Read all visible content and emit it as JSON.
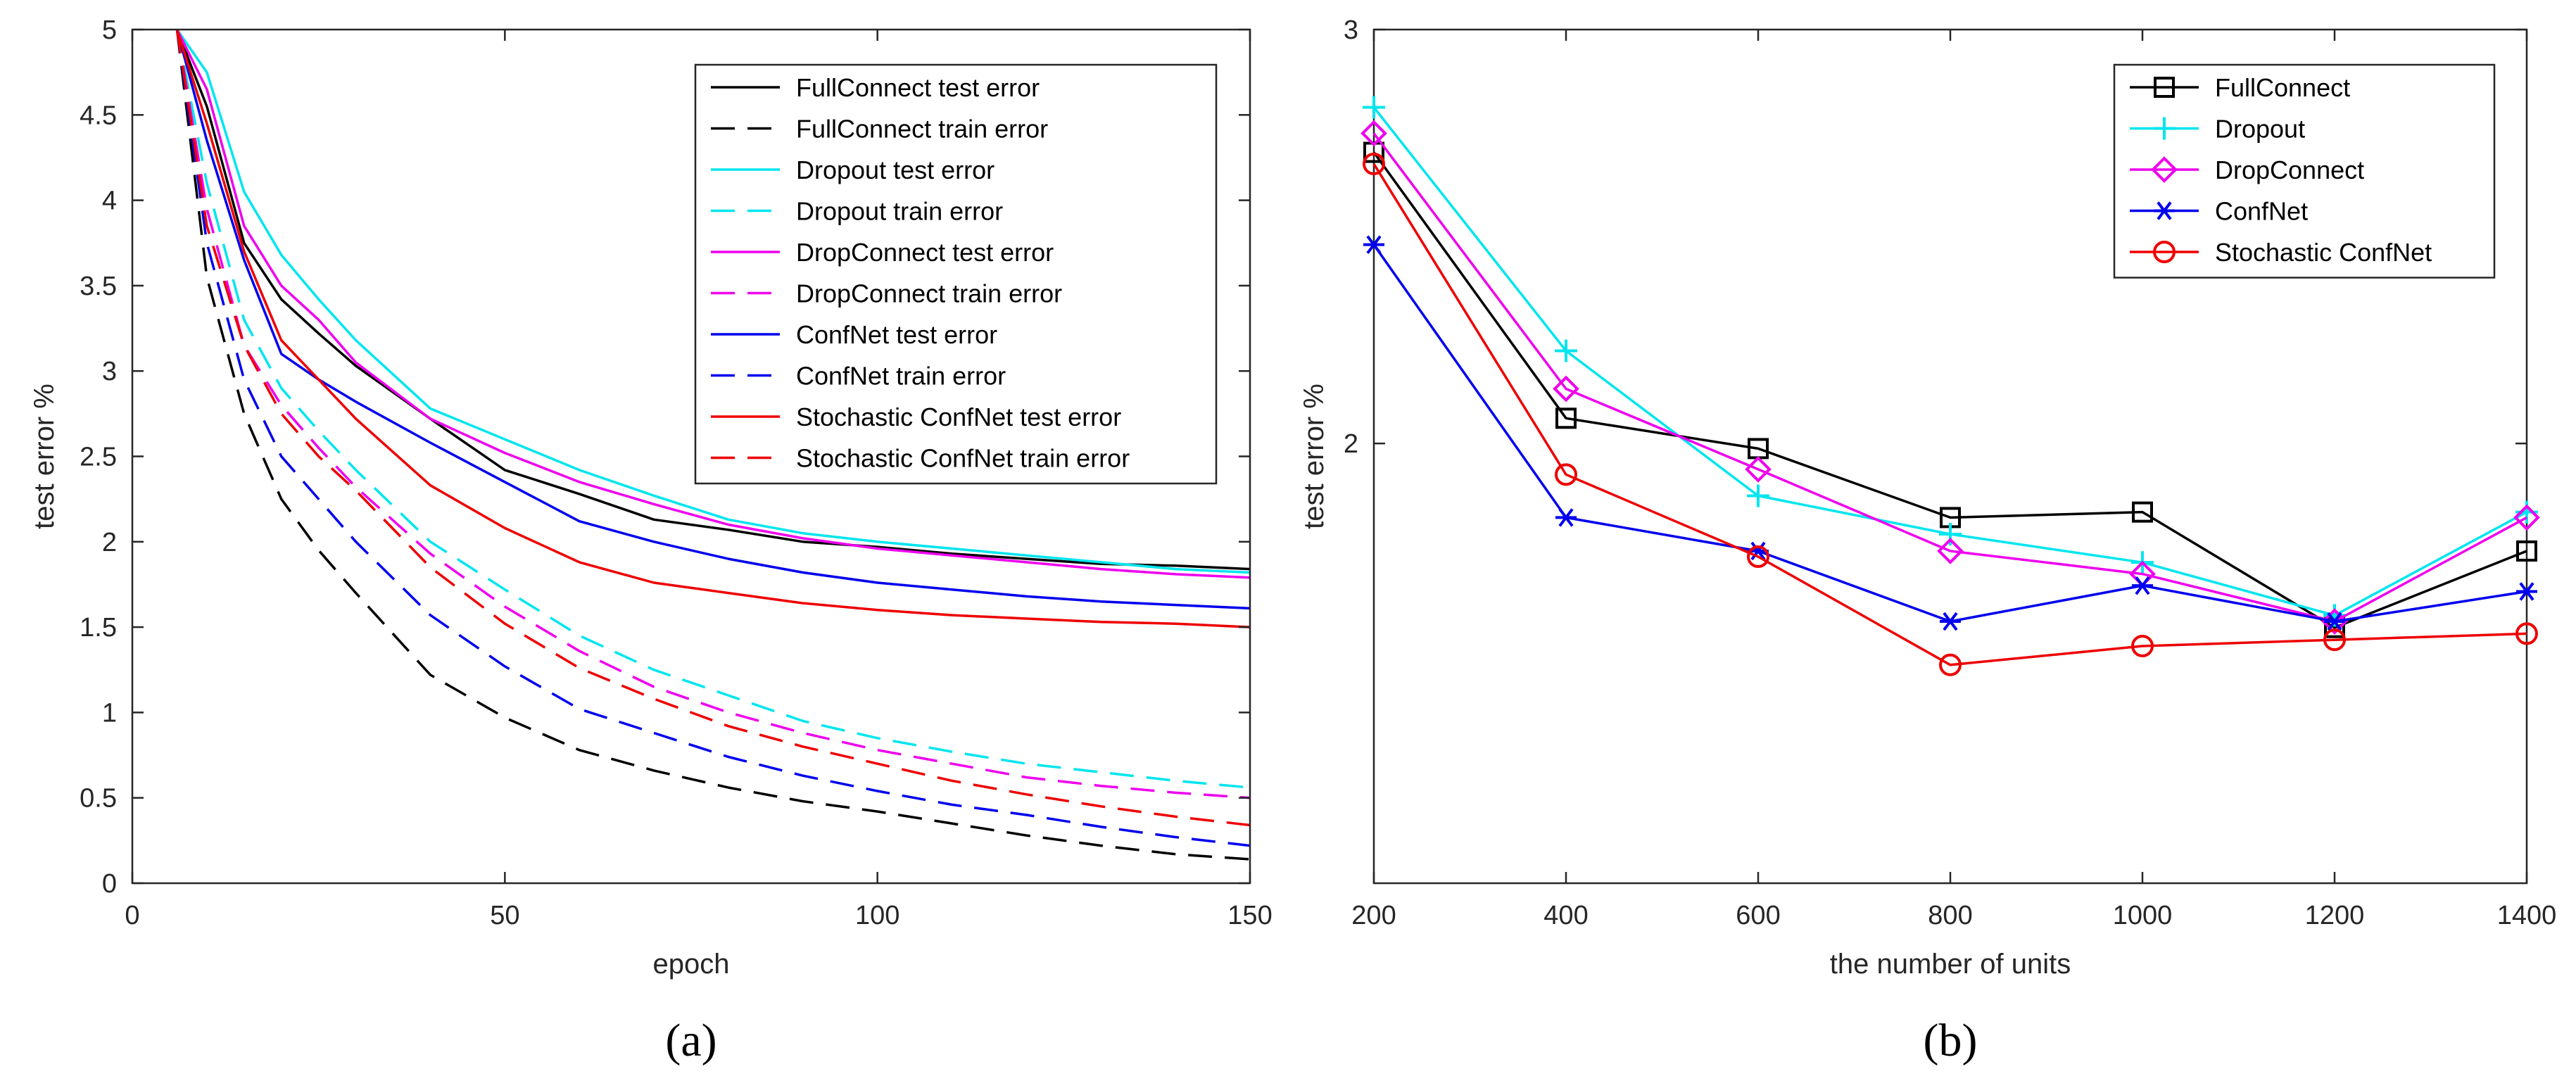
{
  "chart_data": [
    {
      "panel_label": "(a)",
      "type": "line",
      "xlabel": "epoch",
      "ylabel": "test error %",
      "xlim": [
        0,
        150
      ],
      "ylim": [
        0,
        5
      ],
      "xticks": [
        "0",
        "50",
        "100",
        "150"
      ],
      "yticks": [
        "0",
        "0.5",
        "1",
        "1.5",
        "2",
        "2.5",
        "3",
        "3.5",
        "4",
        "4.5",
        "5"
      ],
      "grid": false,
      "legend_position": "top-right",
      "x": [
        6,
        10,
        15,
        20,
        25,
        30,
        40,
        50,
        60,
        70,
        80,
        90,
        100,
        110,
        120,
        130,
        140,
        150
      ],
      "series": [
        {
          "name": "FullConnect test error",
          "color": "#000000",
          "dash": "solid",
          "values": [
            5.0,
            4.55,
            3.75,
            3.42,
            3.22,
            3.03,
            2.72,
            2.42,
            2.28,
            2.13,
            2.07,
            2.0,
            1.97,
            1.93,
            1.9,
            1.87,
            1.86,
            1.84
          ]
        },
        {
          "name": "FullConnect train error",
          "color": "#000000",
          "dash": "dashed",
          "values": [
            5.0,
            3.55,
            2.75,
            2.25,
            1.95,
            1.7,
            1.22,
            0.97,
            0.78,
            0.66,
            0.56,
            0.48,
            0.42,
            0.35,
            0.28,
            0.22,
            0.17,
            0.14
          ]
        },
        {
          "name": "Dropout test error",
          "color": "#00e5ee",
          "dash": "solid",
          "values": [
            5.0,
            4.75,
            4.05,
            3.68,
            3.42,
            3.18,
            2.78,
            2.6,
            2.42,
            2.27,
            2.13,
            2.05,
            2.0,
            1.96,
            1.92,
            1.88,
            1.84,
            1.82
          ]
        },
        {
          "name": "Dropout train error",
          "color": "#00e5ee",
          "dash": "dashed",
          "values": [
            5.0,
            4.1,
            3.3,
            2.9,
            2.65,
            2.42,
            2.0,
            1.72,
            1.45,
            1.25,
            1.1,
            0.95,
            0.85,
            0.77,
            0.7,
            0.65,
            0.6,
            0.56
          ]
        },
        {
          "name": "DropConnect test error",
          "color": "#ee00ee",
          "dash": "solid",
          "values": [
            5.0,
            4.65,
            3.85,
            3.5,
            3.3,
            3.05,
            2.72,
            2.52,
            2.35,
            2.22,
            2.1,
            2.02,
            1.96,
            1.92,
            1.88,
            1.84,
            1.81,
            1.79
          ]
        },
        {
          "name": "DropConnect train error",
          "color": "#ee00ee",
          "dash": "dashed",
          "values": [
            5.0,
            3.95,
            3.15,
            2.8,
            2.55,
            2.32,
            1.93,
            1.62,
            1.36,
            1.15,
            1.0,
            0.88,
            0.78,
            0.7,
            0.62,
            0.57,
            0.53,
            0.5
          ]
        },
        {
          "name": "ConfNet test error",
          "color": "#0000ee",
          "dash": "solid",
          "values": [
            5.0,
            4.35,
            3.65,
            3.1,
            2.95,
            2.82,
            2.58,
            2.35,
            2.12,
            2.0,
            1.9,
            1.82,
            1.76,
            1.72,
            1.68,
            1.65,
            1.63,
            1.61
          ]
        },
        {
          "name": "ConfNet train error",
          "color": "#0000ee",
          "dash": "dashed",
          "values": [
            5.0,
            3.75,
            2.95,
            2.5,
            2.25,
            2.0,
            1.57,
            1.27,
            1.02,
            0.88,
            0.74,
            0.63,
            0.54,
            0.46,
            0.4,
            0.33,
            0.27,
            0.22
          ]
        },
        {
          "name": "Stochastic ConfNet test error",
          "color": "#ee0000",
          "dash": "solid",
          "values": [
            5.0,
            4.45,
            3.7,
            3.18,
            2.95,
            2.72,
            2.33,
            2.08,
            1.88,
            1.76,
            1.7,
            1.64,
            1.6,
            1.57,
            1.55,
            1.53,
            1.52,
            1.5
          ]
        },
        {
          "name": "Stochastic ConfNet train error",
          "color": "#ee0000",
          "dash": "dashed",
          "values": [
            5.0,
            3.85,
            3.15,
            2.75,
            2.5,
            2.3,
            1.85,
            1.52,
            1.26,
            1.08,
            0.92,
            0.8,
            0.7,
            0.6,
            0.52,
            0.45,
            0.39,
            0.34
          ]
        }
      ]
    },
    {
      "panel_label": "(b)",
      "type": "line",
      "xlabel": "the number of units",
      "ylabel": "test error %",
      "xlim": [
        200,
        1400
      ],
      "ylim_log": [
        1.3,
        3
      ],
      "yscale": "log",
      "xticks": [
        "200",
        "400",
        "600",
        "800",
        "1000",
        "1200",
        "1400"
      ],
      "yticks": [
        "2",
        "3"
      ],
      "grid": false,
      "legend_position": "top-right",
      "x": [
        200,
        400,
        600,
        800,
        1000,
        1200,
        1400
      ],
      "series": [
        {
          "name": "FullConnect",
          "color": "#000000",
          "marker": "square",
          "values": [
            2.66,
            2.05,
            1.99,
            1.86,
            1.87,
            1.67,
            1.8
          ]
        },
        {
          "name": "Dropout",
          "color": "#00e5ee",
          "marker": "plus",
          "values": [
            2.78,
            2.19,
            1.9,
            1.83,
            1.78,
            1.69,
            1.87
          ]
        },
        {
          "name": "DropConnect",
          "color": "#ee00ee",
          "marker": "diamond",
          "values": [
            2.71,
            2.11,
            1.95,
            1.8,
            1.76,
            1.68,
            1.86
          ]
        },
        {
          "name": "ConfNet",
          "color": "#0000ee",
          "marker": "asterisk",
          "values": [
            2.43,
            1.86,
            1.8,
            1.68,
            1.74,
            1.68,
            1.73
          ]
        },
        {
          "name": "Stochastic ConfNet",
          "color": "#ee0000",
          "marker": "circle",
          "values": [
            2.63,
            1.94,
            1.79,
            1.61,
            1.64,
            1.65,
            1.66
          ]
        }
      ]
    }
  ]
}
